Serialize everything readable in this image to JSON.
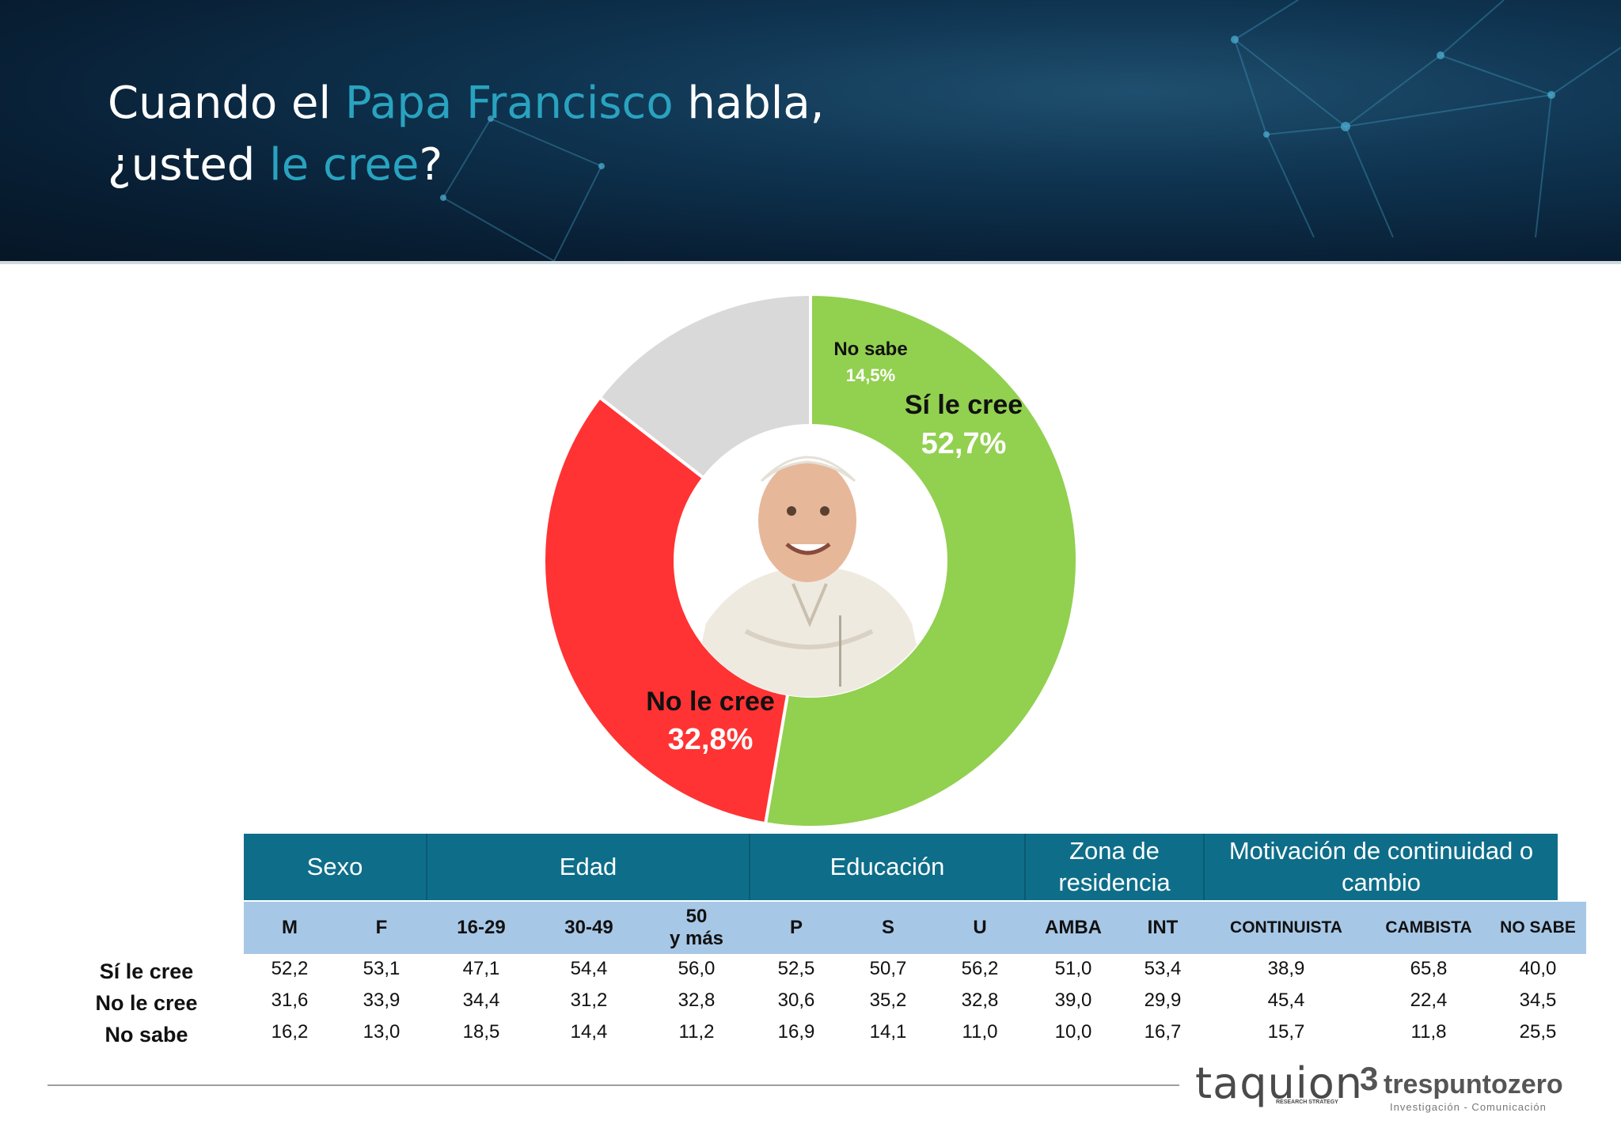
{
  "title": {
    "line1_a": "Cuando el ",
    "line1_b": "Papa Francisco",
    "line1_c": " habla,",
    "line2_a": "¿usted ",
    "line2_b": "le cree",
    "line2_c": "?"
  },
  "colors": {
    "header_bg": "#0b2a42",
    "accent": "#29a3bf",
    "si": "#92d050",
    "no": "#ff3333",
    "nosabe": "#d9d9d9",
    "table_header": "#0e6e8a",
    "table_subheader": "#a7c7e6"
  },
  "chart_data": [
    {
      "type": "pie",
      "variant": "donut",
      "slices": [
        {
          "label": "Sí le cree",
          "display": "52,7%",
          "value": 52.7,
          "color": "#92d050"
        },
        {
          "label": "No le cree",
          "display": "32,8%",
          "value": 32.8,
          "color": "#ff3333"
        },
        {
          "label": "No sabe",
          "display": "14,5%",
          "value": 14.5,
          "color": "#d9d9d9"
        }
      ],
      "center_image": "pope-photo"
    },
    {
      "type": "table",
      "groups": [
        {
          "label": "Sexo",
          "columns": [
            "M",
            "F"
          ]
        },
        {
          "label": "Edad",
          "columns": [
            "16-29",
            "30-49",
            "50\ny más"
          ]
        },
        {
          "label": "Educación",
          "columns": [
            "P",
            "S",
            "U"
          ]
        },
        {
          "label": "Zona de\nresidencia",
          "columns": [
            "AMBA",
            "INT"
          ]
        },
        {
          "label": "Motivación de continuidad o\ncambio",
          "columns": [
            "CONTINUISTA",
            "CAMBISTA",
            "NO SABE"
          ]
        }
      ],
      "rows": [
        {
          "label": "Sí le cree",
          "values": [
            "52,2",
            "53,1",
            "47,1",
            "54,4",
            "56,0",
            "52,5",
            "50,7",
            "56,2",
            "51,0",
            "53,4",
            "38,9",
            "65,8",
            "40,0"
          ]
        },
        {
          "label": "No le cree",
          "values": [
            "31,6",
            "33,9",
            "34,4",
            "31,2",
            "32,8",
            "30,6",
            "35,2",
            "32,8",
            "39,0",
            "29,9",
            "45,4",
            "22,4",
            "34,5"
          ]
        },
        {
          "label": "No sabe",
          "values": [
            "16,2",
            "13,0",
            "18,5",
            "14,4",
            "11,2",
            "16,9",
            "14,1",
            "11,0",
            "10,0",
            "16,7",
            "15,7",
            "11,8",
            "25,5"
          ]
        }
      ]
    }
  ],
  "logos": {
    "taquion": "taquion",
    "taquion_sub": "RESEARCH STRATEGY",
    "tres_mark": "3",
    "tres": "trespuntozero",
    "tres_sub": "Investigación - Comunicación"
  }
}
